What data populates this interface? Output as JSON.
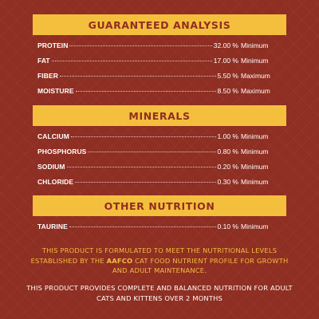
{
  "guaranteed_analysis": {
    "title": "GUARANTEED ANALYSIS",
    "rows": [
      {
        "label": "PROTEIN",
        "value": "32.00 %",
        "unit": "Minimum"
      },
      {
        "label": "FAT",
        "value": "17.00 %",
        "unit": "Minimum"
      },
      {
        "label": "FIBER",
        "value": "5.50 %",
        "unit": "Maximum"
      },
      {
        "label": "MOISTURE",
        "value": "8.50 %",
        "unit": "Maximum"
      }
    ]
  },
  "minerals": {
    "title": "MINERALS",
    "rows": [
      {
        "label": "CALCIUM",
        "value": "1.00 %",
        "unit": "Minimum"
      },
      {
        "label": "PHOSPHORUS",
        "value": "0.80 %",
        "unit": "Minimum"
      },
      {
        "label": "SODIUM",
        "value": "0.20 %",
        "unit": "Minimum"
      },
      {
        "label": "CHLORIDE",
        "value": "0.30 %",
        "unit": "Minimum"
      }
    ]
  },
  "other_nutrition": {
    "title": "OTHER NUTRITION",
    "rows": [
      {
        "label": "TAURINE",
        "value": "0.10 %",
        "unit": "Minimum"
      }
    ]
  },
  "statement": {
    "part1": "THIS PRODUCT IS FORMULATED TO MEET THE NUTRITIONAL LEVELS ESTABLISHED BY THE ",
    "brand": "AAFCO",
    "part2": " CAT FOOD NUTRIENT PROFILE FOR GROWTH AND ADULT MAINTENANCE."
  },
  "complete_note": "THIS PRODUCT PROVIDES COMPLETE AND BALANCED NUTRITION FOR ADULT CATS AND KITTENS OVER 2 MONTHS",
  "colors": {
    "background": "#8f2e22",
    "banner": "#f4bf3d",
    "text": "#ffffff"
  }
}
